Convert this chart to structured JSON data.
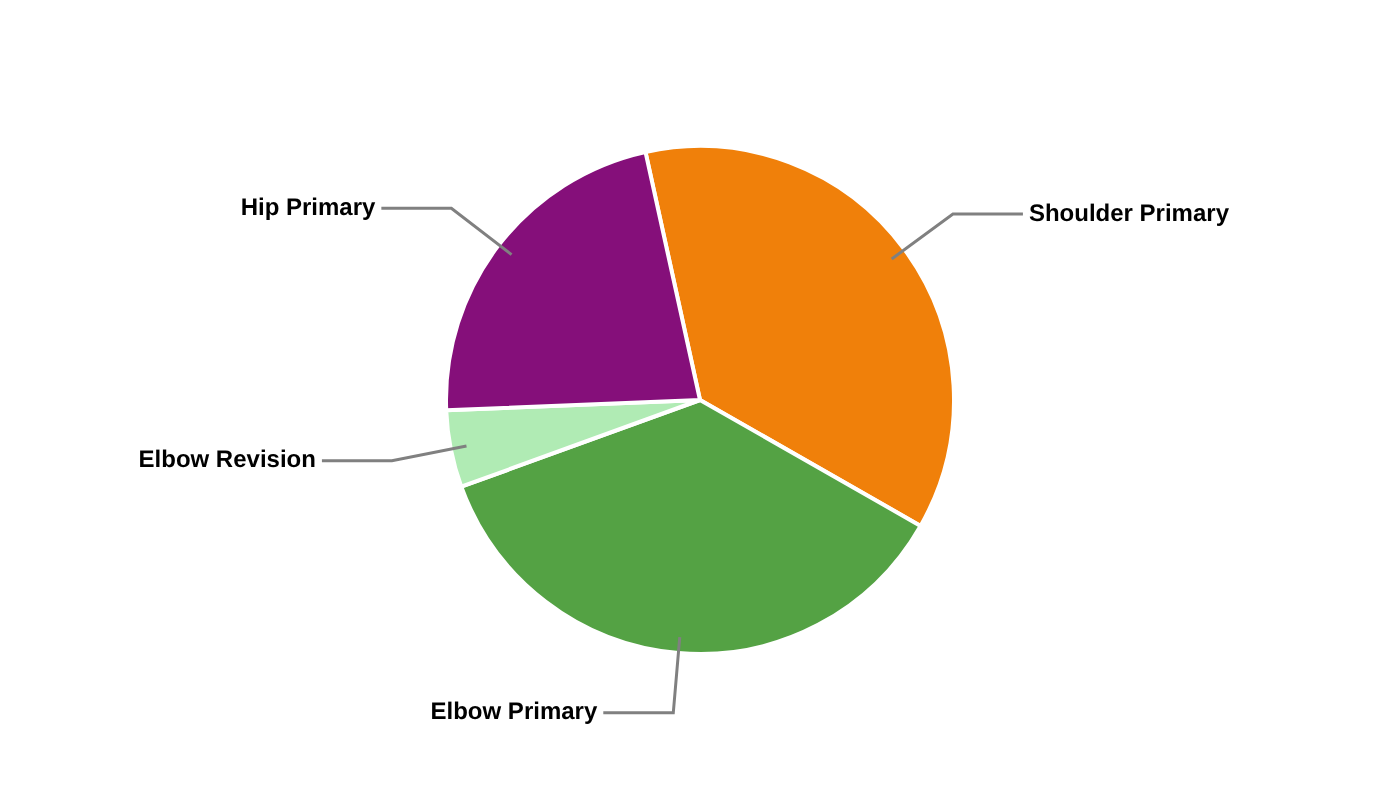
{
  "chart_data": {
    "type": "pie",
    "categories": [
      "Shoulder Primary",
      "Elbow Primary",
      "Elbow Revision",
      "Hip Primary"
    ],
    "values": [
      36.7,
      36.2,
      4.9,
      22.2
    ],
    "colors": [
      "#f0800a",
      "#54a244",
      "#b0ebb4",
      "#850f7a"
    ],
    "legend": false
  }
}
